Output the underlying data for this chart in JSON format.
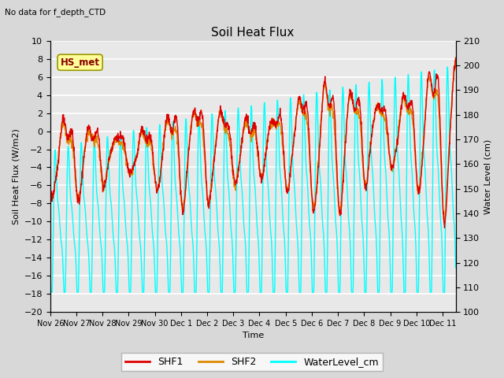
{
  "title": "Soil Heat Flux",
  "subtitle": "No data for f_depth_CTD",
  "xlabel": "Time",
  "ylabel_left": "Soil Heat Flux (W/m2)",
  "ylabel_right": "Water Level (cm)",
  "ylim_left": [
    -20,
    10
  ],
  "ylim_right": [
    100,
    210
  ],
  "background_color": "#d8d8d8",
  "plot_background": "#e8e8e8",
  "grid_color": "white",
  "shf1_color": "#dd0000",
  "shf2_color": "#dd8800",
  "water_color": "cyan",
  "annotation_box_color": "#ffff99",
  "annotation_text": "HS_met",
  "annotation_text_color": "#880000",
  "xtick_labels": [
    "Nov 26",
    "Nov 27",
    "Nov 28",
    "Nov 29",
    "Nov 30",
    "Dec 1",
    "Dec 2",
    "Dec 3",
    "Dec 4",
    "Dec 5",
    "Dec 6",
    "Dec 7",
    "Dec 8",
    "Dec 9",
    "Dec 10",
    "Dec 11"
  ],
  "linewidth": 1.0
}
